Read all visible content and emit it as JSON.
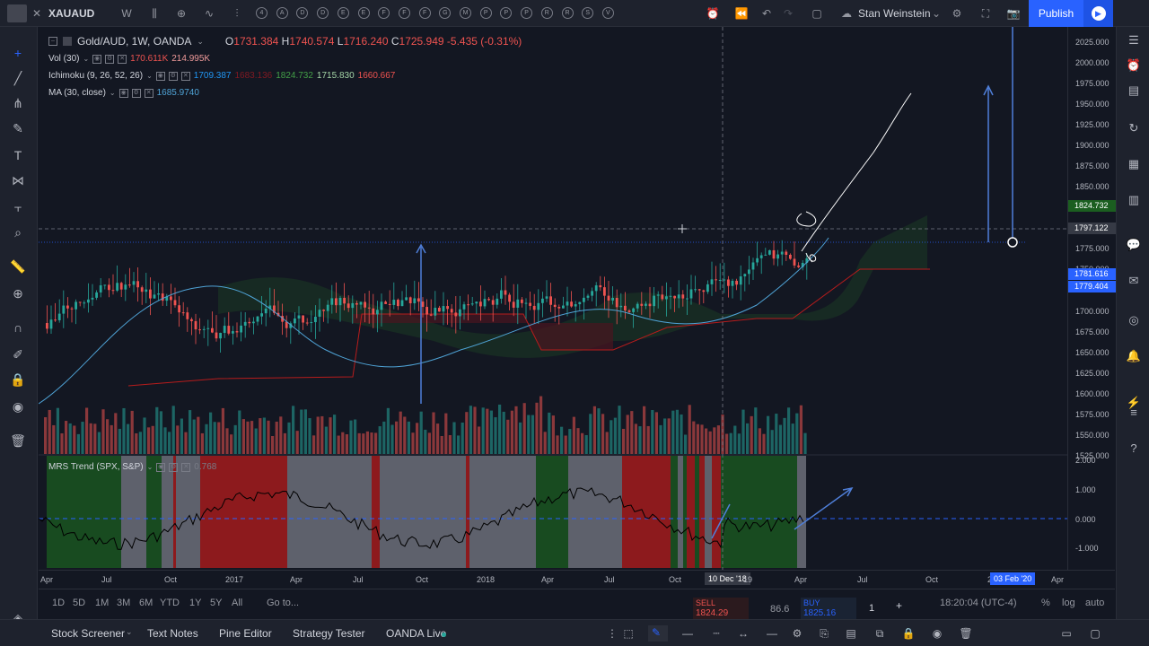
{
  "topbar": {
    "symbol": "XAUAUD",
    "interval": "W",
    "compare_letters": [
      "4",
      "A",
      "D",
      "D",
      "E",
      "E",
      "F",
      "F",
      "F",
      "G",
      "M",
      "P",
      "P",
      "P",
      "R",
      "R",
      "S",
      "V"
    ],
    "user": "Stan Weinstein",
    "publish_label": "Publish"
  },
  "legend": {
    "title": "Gold/AUD, 1W, OANDA",
    "open_label": "O",
    "open": "1731.384",
    "high_label": "H",
    "high": "1740.574",
    "low_label": "L",
    "low": "1716.240",
    "close_label": "C",
    "close": "1725.949",
    "change": "-5.435 (-0.31%)",
    "vol_label": "Vol (30)",
    "vol_values": [
      "170.611K",
      "214.995K"
    ],
    "ichimoku_label": "Ichimoku (9, 26, 52, 26)",
    "ichimoku_values": [
      "1709.387",
      "1683.136",
      "1824.732",
      "1715.830",
      "1660.667"
    ],
    "ma_label": "MA (30, close)",
    "ma_value": "1685.9740",
    "mrs_label": "MRS Trend (SPX, S&P)",
    "mrs_value": "0.768"
  },
  "price_axis": {
    "labels": [
      "2025.000",
      "2000.000",
      "1975.000",
      "1950.000",
      "1925.000",
      "1900.000",
      "1875.000",
      "1850.000",
      "1825.000",
      "1800.000",
      "1775.000",
      "1750.000",
      "1725.000",
      "1700.000",
      "1675.000",
      "1650.000",
      "1625.000",
      "1600.000",
      "1575.000",
      "1550.000",
      "1525.000"
    ],
    "tags": [
      {
        "value": "1824.732",
        "color": "#1b5e20"
      },
      {
        "value": "1797.122",
        "color": "#363a45"
      },
      {
        "value": "1781.616",
        "color": "#2962ff"
      },
      {
        "value": "1779.404",
        "color": "#2962ff"
      }
    ],
    "indicator_labels": [
      "2.000",
      "1.000",
      "0.000",
      "-1.000"
    ]
  },
  "time_axis": {
    "labels": [
      "Apr",
      "Jul",
      "Oct",
      "2017",
      "Apr",
      "Jul",
      "Oct",
      "2018",
      "Apr",
      "Jul",
      "Oct",
      "10 Dec '18",
      "19",
      "Apr",
      "Jul",
      "Oct",
      "20",
      "03 Feb '20",
      "Apr"
    ]
  },
  "ranges": {
    "items": [
      "1D",
      "5D",
      "1M",
      "3M",
      "6M",
      "YTD",
      "1Y",
      "5Y",
      "All"
    ],
    "goto": "Go to...",
    "clock": "18:20:04 (UTC-4)",
    "pct": "%",
    "log": "log",
    "auto": "auto"
  },
  "trade": {
    "sell_label": "SELL",
    "sell_price": "1824.29",
    "spread": "86.6",
    "buy_label": "BUY",
    "buy_price": "1825.16",
    "qty": "1"
  },
  "bottom_tabs": [
    "Stock Screener",
    "Text Notes",
    "Pine Editor",
    "Strategy Tester",
    "OANDA Live"
  ],
  "colors": {
    "background": "#131722",
    "up": "#26a69a",
    "down": "#ef5350",
    "accent": "#2962ff"
  }
}
